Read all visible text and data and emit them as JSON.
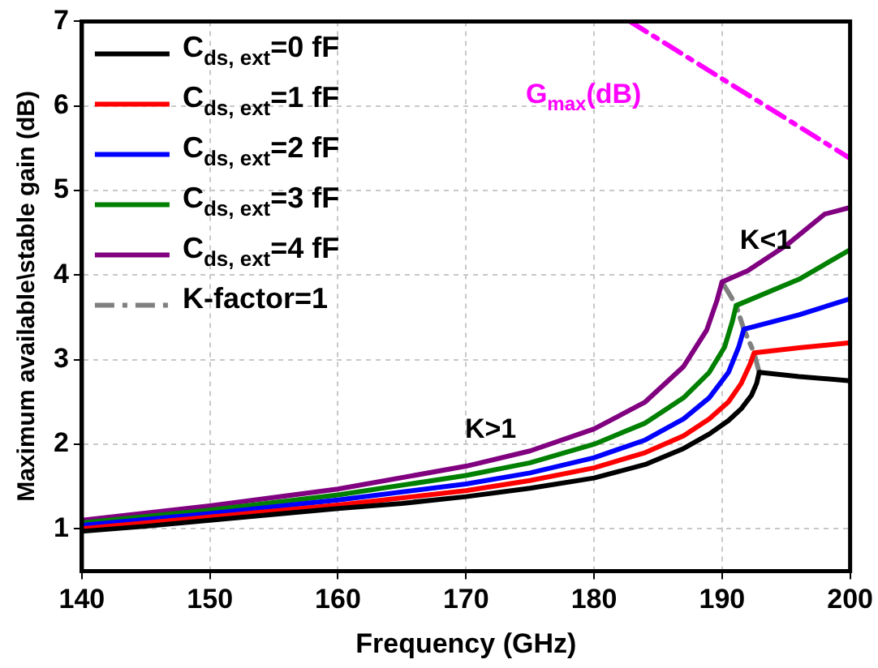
{
  "chart_data": {
    "type": "line",
    "xlabel": "Frequency (GHz)",
    "ylabel": "Maximum available\\stable gain (dB)",
    "xlim": [
      140,
      200
    ],
    "xticks": [
      140,
      150,
      160,
      170,
      180,
      190,
      200
    ],
    "ylim": [
      0.5,
      7
    ],
    "yticks": [
      1,
      2,
      3,
      4,
      5,
      6,
      7
    ],
    "grid": true,
    "legend": "top left",
    "marker": "none",
    "series": [
      {
        "name": "C$_{ds, ext}$=0 fF",
        "color": "#000000",
        "line_style": "solid",
        "x": [
          140,
          145,
          150,
          155,
          160,
          165,
          170,
          175,
          180,
          184,
          187,
          189,
          190.5,
          191.5,
          192.3,
          192.7,
          192.9,
          196,
          200
        ],
        "values": [
          0.97,
          1.03,
          1.1,
          1.17,
          1.24,
          1.3,
          1.38,
          1.48,
          1.6,
          1.76,
          1.95,
          2.12,
          2.28,
          2.42,
          2.58,
          2.72,
          2.85,
          2.8,
          2.75
        ]
      },
      {
        "name": "C$_{ds, ext}$=1 fF",
        "color": "#ff0000",
        "line_style": "solid",
        "x": [
          140,
          150,
          160,
          170,
          175,
          180,
          184,
          187,
          189,
          190.5,
          191.5,
          192.2,
          192.5,
          196,
          200
        ],
        "values": [
          1.0,
          1.14,
          1.28,
          1.45,
          1.57,
          1.72,
          1.9,
          2.1,
          2.3,
          2.5,
          2.72,
          2.95,
          3.08,
          3.14,
          3.2
        ]
      },
      {
        "name": "C$_{ds, ext}$=2 fF",
        "color": "#0000ff",
        "line_style": "solid",
        "x": [
          140,
          150,
          160,
          170,
          175,
          180,
          184,
          187,
          189,
          190.5,
          191.3,
          191.7,
          196,
          200
        ],
        "values": [
          1.04,
          1.18,
          1.34,
          1.53,
          1.66,
          1.84,
          2.05,
          2.3,
          2.55,
          2.85,
          3.15,
          3.36,
          3.53,
          3.72
        ]
      },
      {
        "name": "C$_{ds, ext}$=3 fF",
        "color": "#008000",
        "line_style": "solid",
        "x": [
          140,
          150,
          160,
          170,
          175,
          180,
          184,
          187,
          189,
          190.2,
          190.8,
          191.1,
          196,
          200
        ],
        "values": [
          1.07,
          1.22,
          1.4,
          1.63,
          1.78,
          2.0,
          2.25,
          2.55,
          2.85,
          3.15,
          3.45,
          3.64,
          3.95,
          4.3
        ]
      },
      {
        "name": "C$_{ds, ext}$=4 fF",
        "color": "#800080",
        "line_style": "solid",
        "x": [
          140,
          150,
          160,
          170,
          175,
          180,
          184,
          187,
          188.8,
          189.6,
          190.0,
          192,
          195,
          198,
          200
        ],
        "values": [
          1.1,
          1.27,
          1.47,
          1.74,
          1.92,
          2.18,
          2.5,
          2.92,
          3.35,
          3.7,
          3.92,
          4.05,
          4.35,
          4.72,
          4.8
        ]
      },
      {
        "name": "K-factor=1",
        "color": "#808080",
        "line_style": "dashed",
        "x": [
          190.0,
          191.1,
          191.7,
          192.5,
          192.9
        ],
        "values": [
          3.92,
          3.64,
          3.36,
          3.08,
          2.85
        ]
      },
      {
        "color": "#ff00ff",
        "line_style": "dashed",
        "x": [
          182.8,
          200
        ],
        "values": [
          7,
          5.38
        ]
      }
    ],
    "annotations": [
      "G$_{max}$(dB)",
      "K>1",
      "K<1"
    ]
  }
}
